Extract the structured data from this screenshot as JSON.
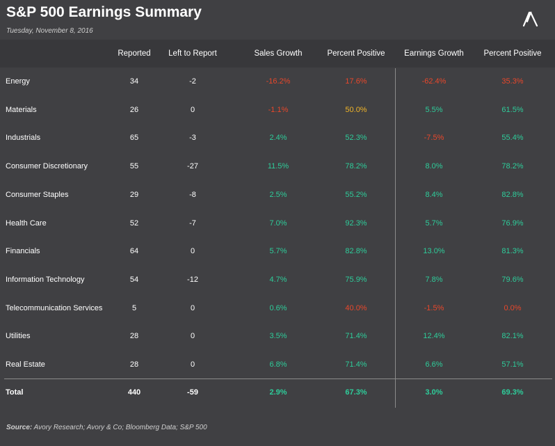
{
  "title": "S&P 500 Earnings Summary",
  "date": "Tuesday, November 8, 2016",
  "colors": {
    "positive": "#2ecc9a",
    "negative": "#e8472b",
    "neutral": "#f0b428",
    "text": "#ffffff",
    "background": "#404043"
  },
  "logo_icon": "chevron-up-icon",
  "chart_data": {
    "type": "table",
    "columns": [
      "",
      "Reported",
      "Left to Report",
      "Sales Growth",
      "Percent Positive",
      "Earnings Growth",
      "Percent Positive"
    ],
    "rows": [
      {
        "sector": "Energy",
        "reported": "34",
        "left": "-2",
        "sales_growth": "-16.2%",
        "sales_pct": "17.6%",
        "earn_growth": "-62.4%",
        "earn_pct": "35.3%",
        "colors": [
          "neg",
          "neg",
          "neg",
          "neg"
        ]
      },
      {
        "sector": "Materials",
        "reported": "26",
        "left": "0",
        "sales_growth": "-1.1%",
        "sales_pct": "50.0%",
        "earn_growth": "5.5%",
        "earn_pct": "61.5%",
        "colors": [
          "neg",
          "neu",
          "pos",
          "pos"
        ]
      },
      {
        "sector": "Industrials",
        "reported": "65",
        "left": "-3",
        "sales_growth": "2.4%",
        "sales_pct": "52.3%",
        "earn_growth": "-7.5%",
        "earn_pct": "55.4%",
        "colors": [
          "pos",
          "pos",
          "neg",
          "pos"
        ]
      },
      {
        "sector": "Consumer Discretionary",
        "reported": "55",
        "left": "-27",
        "sales_growth": "11.5%",
        "sales_pct": "78.2%",
        "earn_growth": "8.0%",
        "earn_pct": "78.2%",
        "colors": [
          "pos",
          "pos",
          "pos",
          "pos"
        ]
      },
      {
        "sector": "Consumer Staples",
        "reported": "29",
        "left": "-8",
        "sales_growth": "2.5%",
        "sales_pct": "55.2%",
        "earn_growth": "8.4%",
        "earn_pct": "82.8%",
        "colors": [
          "pos",
          "pos",
          "pos",
          "pos"
        ]
      },
      {
        "sector": "Health Care",
        "reported": "52",
        "left": "-7",
        "sales_growth": "7.0%",
        "sales_pct": "92.3%",
        "earn_growth": "5.7%",
        "earn_pct": "76.9%",
        "colors": [
          "pos",
          "pos",
          "pos",
          "pos"
        ]
      },
      {
        "sector": "Financials",
        "reported": "64",
        "left": "0",
        "sales_growth": "5.7%",
        "sales_pct": "82.8%",
        "earn_growth": "13.0%",
        "earn_pct": "81.3%",
        "colors": [
          "pos",
          "pos",
          "pos",
          "pos"
        ]
      },
      {
        "sector": "Information Technology",
        "reported": "54",
        "left": "-12",
        "sales_growth": "4.7%",
        "sales_pct": "75.9%",
        "earn_growth": "7.8%",
        "earn_pct": "79.6%",
        "colors": [
          "pos",
          "pos",
          "pos",
          "pos"
        ]
      },
      {
        "sector": "Telecommunication Services",
        "reported": "5",
        "left": "0",
        "sales_growth": "0.6%",
        "sales_pct": "40.0%",
        "earn_growth": "-1.5%",
        "earn_pct": "0.0%",
        "colors": [
          "pos",
          "neg",
          "neg",
          "neg"
        ]
      },
      {
        "sector": "Utilities",
        "reported": "28",
        "left": "0",
        "sales_growth": "3.5%",
        "sales_pct": "71.4%",
        "earn_growth": "12.4%",
        "earn_pct": "82.1%",
        "colors": [
          "pos",
          "pos",
          "pos",
          "pos"
        ]
      },
      {
        "sector": "Real Estate",
        "reported": "28",
        "left": "0",
        "sales_growth": "6.8%",
        "sales_pct": "71.4%",
        "earn_growth": "6.6%",
        "earn_pct": "57.1%",
        "colors": [
          "pos",
          "pos",
          "pos",
          "pos"
        ]
      }
    ],
    "total": {
      "sector": "Total",
      "reported": "440",
      "left": "-59",
      "sales_growth": "2.9%",
      "sales_pct": "67.3%",
      "earn_growth": "3.0%",
      "earn_pct": "69.3%",
      "colors": [
        "pos",
        "pos",
        "pos",
        "pos"
      ]
    }
  },
  "source_label": "Source:",
  "source_text": "Avory Research; Avory & Co; Bloomberg Data; S&P 500"
}
